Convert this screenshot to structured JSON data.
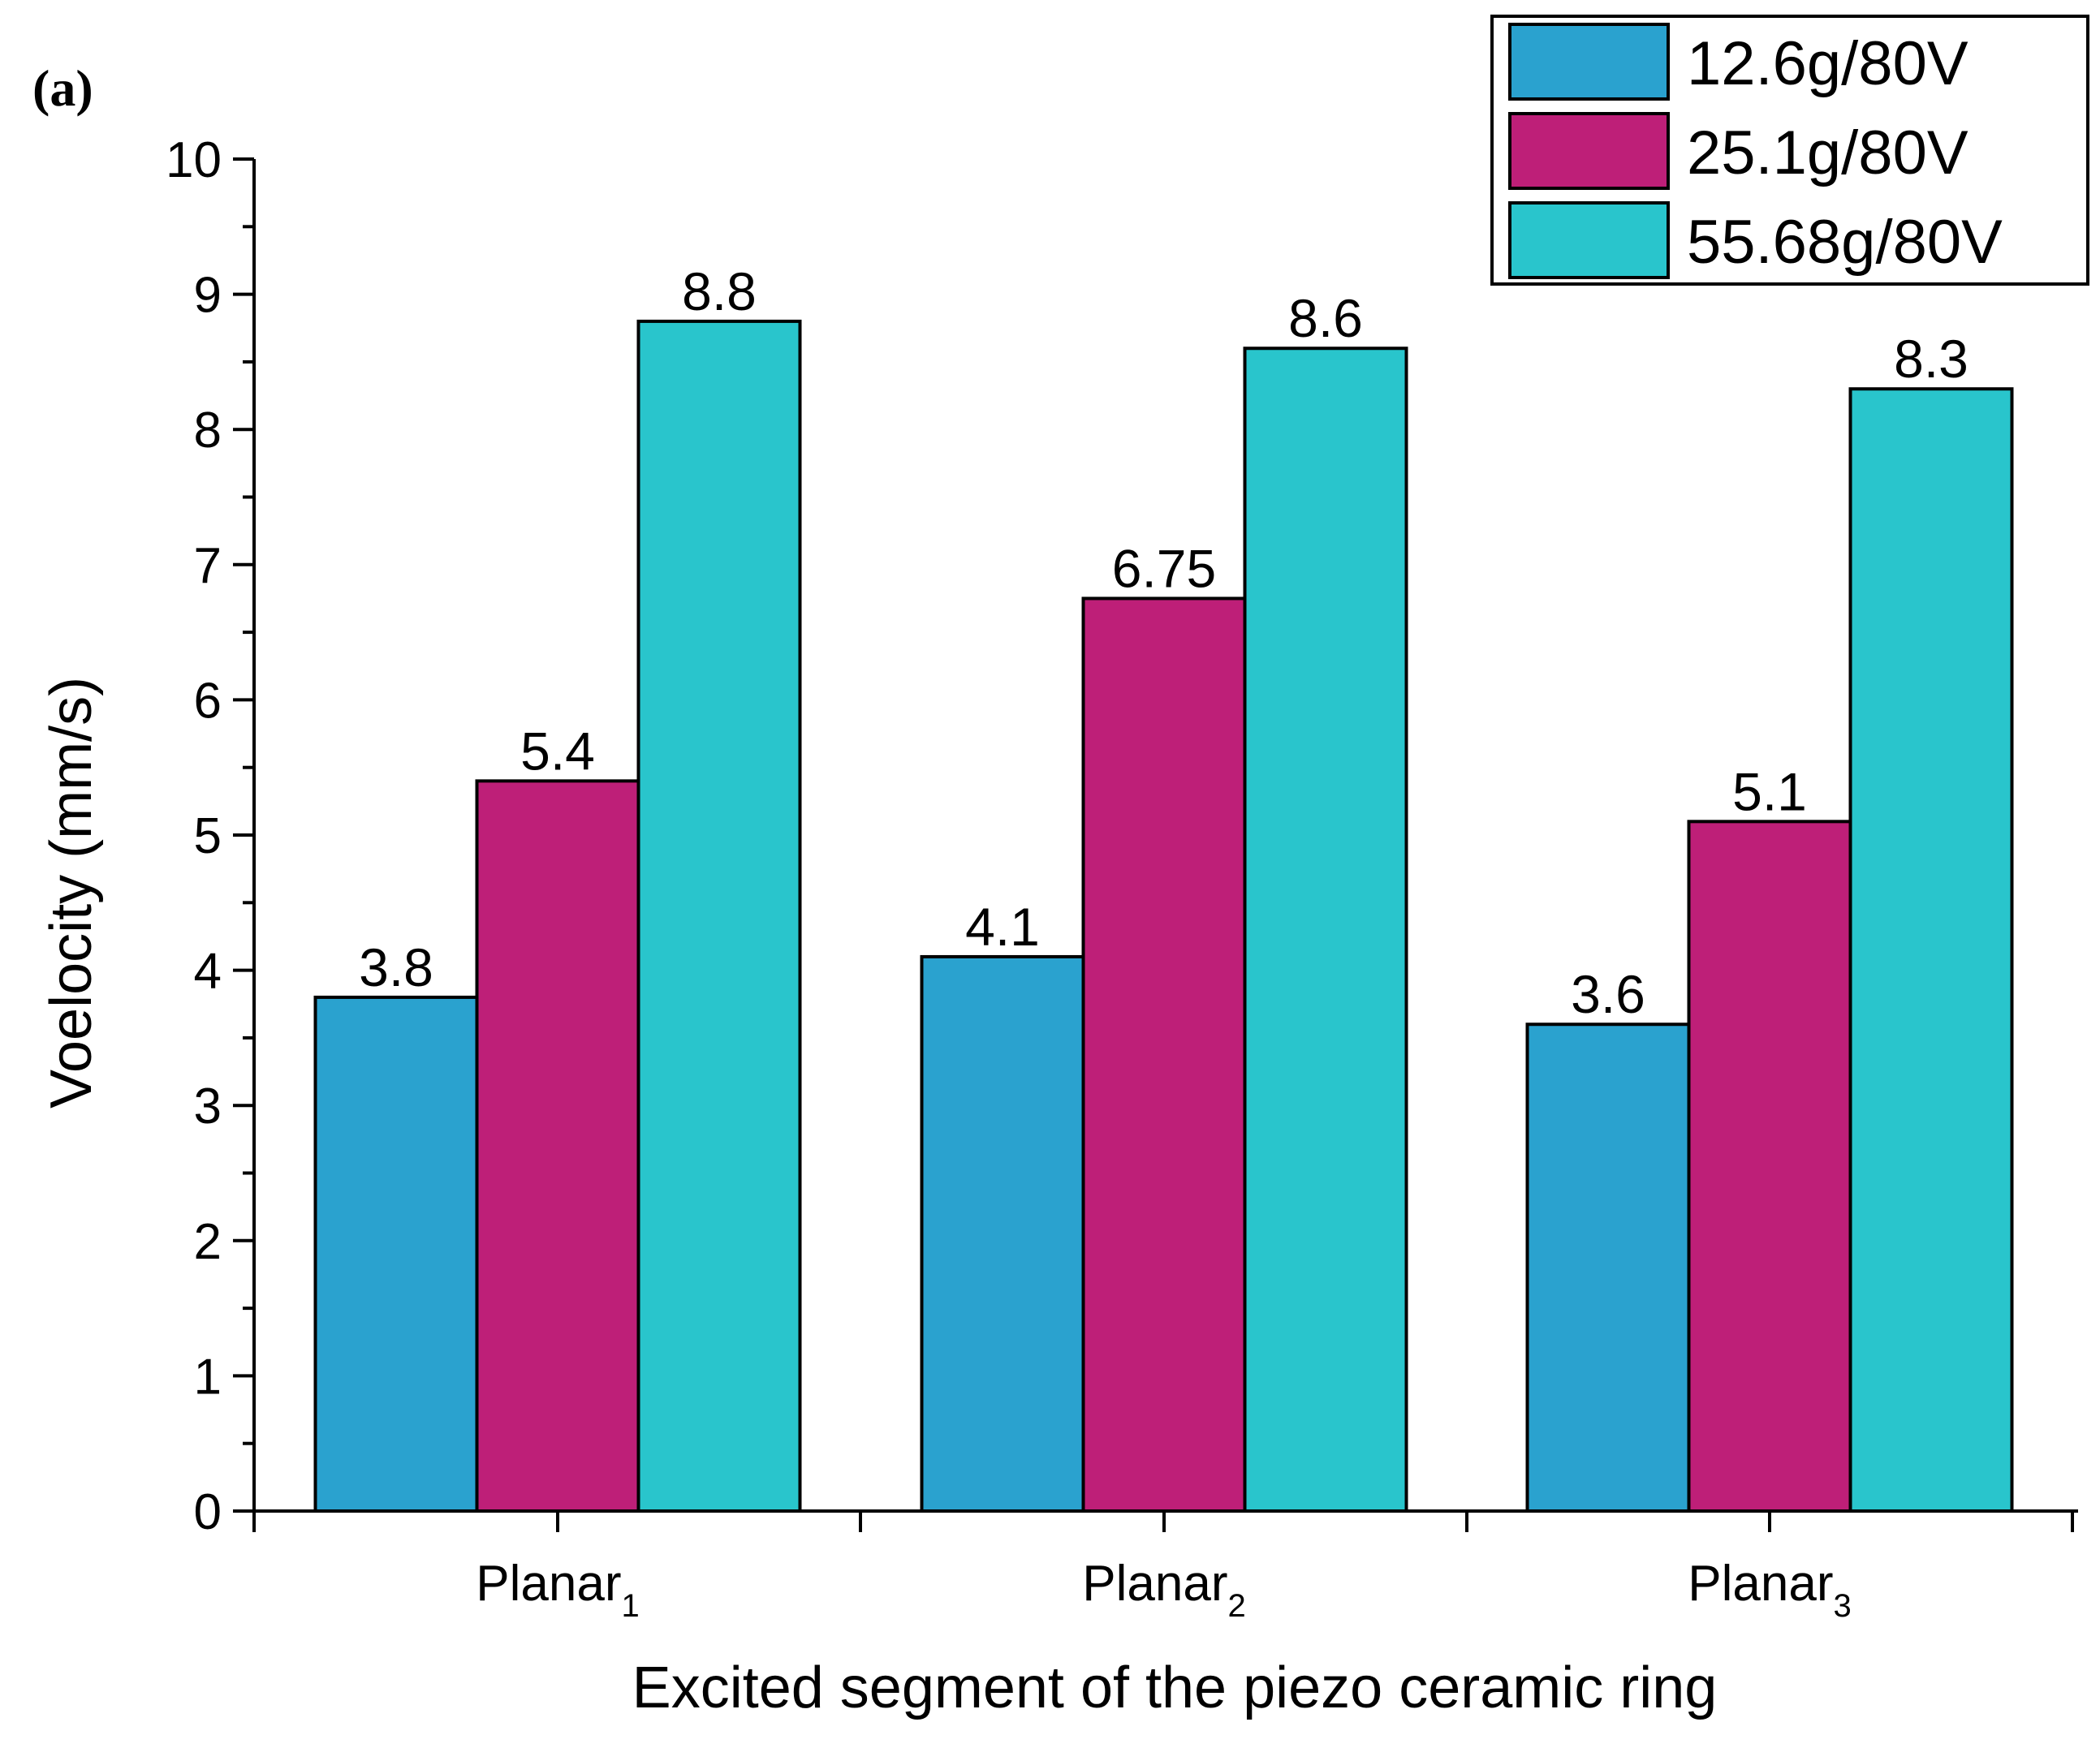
{
  "panel_label": "(a)",
  "chart_data": {
    "type": "bar",
    "title": "",
    "xlabel": "Excited segment of the piezo ceramic ring",
    "ylabel": "Voelocity (mm/s)",
    "ylim": [
      0,
      10
    ],
    "yticks": [
      "0",
      "1",
      "2",
      "3",
      "4",
      "5",
      "6",
      "7",
      "8",
      "9",
      "10"
    ],
    "categories": [
      {
        "base": "Planar",
        "sub": "1"
      },
      {
        "base": "Planar",
        "sub": "2"
      },
      {
        "base": "Planar",
        "sub": "3"
      }
    ],
    "series": [
      {
        "name": "12.6g/80V",
        "color": "#2aa2cf",
        "values": [
          3.8,
          4.1,
          3.6
        ],
        "labels": [
          "3.8",
          "4.1",
          "3.6"
        ]
      },
      {
        "name": "25.1g/80V",
        "color": "#be1f78",
        "values": [
          5.4,
          6.75,
          5.1
        ],
        "labels": [
          "5.4",
          "6.75",
          "5.1"
        ]
      },
      {
        "name": "55.68g/80V",
        "color": "#29c5cc",
        "values": [
          8.8,
          8.6,
          8.3
        ],
        "labels": [
          "8.8",
          "8.6",
          "8.3"
        ]
      }
    ],
    "legend_position": "top-right",
    "grid": false
  }
}
